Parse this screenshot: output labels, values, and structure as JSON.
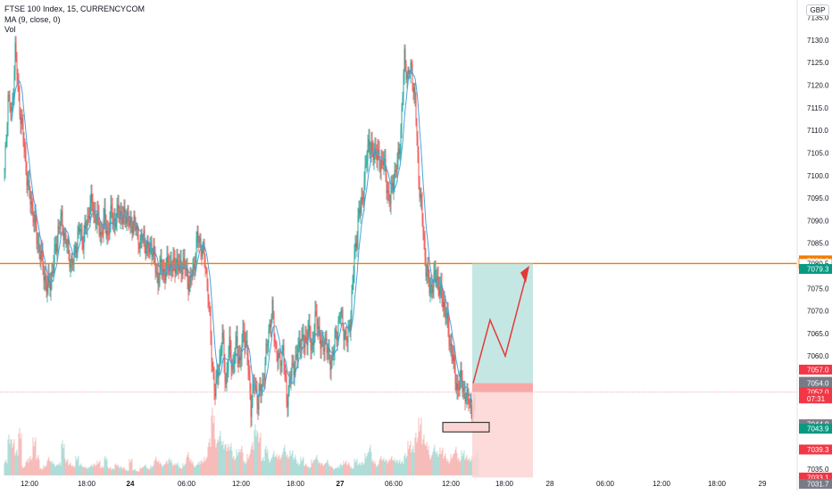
{
  "legend": {
    "symbol": "FTSE 100 Index, 15, CURRENCYCOM",
    "ma": "MA (9, close, 0)",
    "vol": "Vol"
  },
  "currency_label": "GBP",
  "colors": {
    "up": "#26a69a",
    "down": "#ef5350",
    "ma": "#4aa3df",
    "resistance": "#f57c00",
    "profit_zone": "#b2dfdb",
    "loss_zone": "#fbd5d4"
  },
  "chart_data": {
    "type": "candlestick",
    "symbol": "FTSE 100 Index",
    "interval": "15",
    "y_axis": {
      "range": [
        7031,
        7137
      ],
      "ticks": [
        "7135.0",
        "7130.0",
        "7125.0",
        "7120.0",
        "7115.0",
        "7110.0",
        "7105.0",
        "7100.0",
        "7095.0",
        "7090.0",
        "7085.0",
        "7075.0",
        "7070.0",
        "7065.0",
        "7060.0",
        "7035.0"
      ]
    },
    "x_axis": {
      "labels": [
        "12:00",
        "18:00",
        "24",
        "06:00",
        "12:00",
        "18:00",
        "27",
        "06:00",
        "12:00",
        "18:00",
        "28",
        "06:00",
        "12:00",
        "18:00",
        "29"
      ]
    },
    "price_labels": [
      {
        "text": "7081.2",
        "value": 7081.2,
        "color": "#f57c00"
      },
      {
        "text": "7080.5",
        "value": 7080.5,
        "color": "#ffffff"
      },
      {
        "text": "7079.3",
        "value": 7079.3,
        "color": "#089981"
      },
      {
        "text": "7057.0",
        "value": 7057.0,
        "color": "#f23645"
      },
      {
        "text": "7054.3",
        "value": 7054.3,
        "color": "#787b86"
      },
      {
        "text": "7054.0",
        "value": 7054.0,
        "color": "#787b86"
      },
      {
        "text": "7052.0",
        "value": 7052.0,
        "color": "#f23645"
      },
      {
        "text": "07:31",
        "value": 7050.6,
        "color": "#f23645"
      },
      {
        "text": "7044.9",
        "value": 7044.9,
        "color": "#787b86"
      },
      {
        "text": "7043.9",
        "value": 7043.9,
        "color": "#089981"
      },
      {
        "text": "7039.3",
        "value": 7039.3,
        "color": "#f23645"
      },
      {
        "text": "7033.1",
        "value": 7033.1,
        "color": "#f23645"
      },
      {
        "text": "7031.7",
        "value": 7031.7,
        "color": "#787b86"
      }
    ],
    "resistance_level": 7080.5,
    "position": {
      "entry": 7054.0,
      "target": 7080.5,
      "stop": 7033.1
    },
    "price_path": [
      [
        0,
        7100
      ],
      [
        4,
        7118
      ],
      [
        8,
        7113
      ],
      [
        12,
        7128
      ],
      [
        16,
        7117
      ],
      [
        20,
        7110
      ],
      [
        24,
        7102
      ],
      [
        28,
        7095
      ],
      [
        32,
        7092
      ],
      [
        36,
        7086
      ],
      [
        40,
        7083
      ],
      [
        44,
        7078
      ],
      [
        48,
        7075
      ],
      [
        52,
        7077
      ],
      [
        56,
        7082
      ],
      [
        60,
        7088
      ],
      [
        64,
        7090
      ],
      [
        68,
        7086
      ],
      [
        72,
        7083
      ],
      [
        76,
        7080
      ],
      [
        80,
        7085
      ],
      [
        84,
        7088
      ],
      [
        88,
        7086
      ],
      [
        92,
        7089
      ],
      [
        96,
        7094
      ],
      [
        100,
        7092
      ],
      [
        104,
        7090
      ],
      [
        108,
        7087
      ],
      [
        112,
        7090
      ],
      [
        116,
        7087
      ],
      [
        120,
        7092
      ],
      [
        124,
        7089
      ],
      [
        128,
        7093
      ],
      [
        132,
        7090
      ],
      [
        136,
        7092
      ],
      [
        140,
        7089
      ],
      [
        144,
        7090
      ],
      [
        148,
        7088
      ],
      [
        152,
        7085
      ],
      [
        156,
        7087
      ],
      [
        160,
        7083
      ],
      [
        164,
        7085
      ],
      [
        168,
        7081
      ],
      [
        172,
        7077
      ],
      [
        176,
        7080
      ],
      [
        180,
        7078
      ],
      [
        184,
        7081
      ],
      [
        188,
        7079
      ],
      [
        192,
        7081
      ],
      [
        196,
        7079
      ],
      [
        200,
        7081
      ],
      [
        204,
        7078
      ],
      [
        208,
        7076
      ],
      [
        212,
        7080
      ],
      [
        216,
        7086
      ],
      [
        220,
        7085
      ],
      [
        224,
        7082
      ],
      [
        228,
        7075
      ],
      [
        232,
        7060
      ],
      [
        236,
        7052
      ],
      [
        240,
        7058
      ],
      [
        244,
        7064
      ],
      [
        248,
        7054
      ],
      [
        252,
        7062
      ],
      [
        256,
        7057
      ],
      [
        260,
        7063
      ],
      [
        264,
        7058
      ],
      [
        268,
        7066
      ],
      [
        272,
        7060
      ],
      [
        276,
        7049
      ],
      [
        280,
        7054
      ],
      [
        284,
        7050
      ],
      [
        288,
        7053
      ],
      [
        292,
        7058
      ],
      [
        296,
        7066
      ],
      [
        300,
        7070
      ],
      [
        304,
        7062
      ],
      [
        308,
        7058
      ],
      [
        312,
        7062
      ],
      [
        316,
        7050
      ],
      [
        320,
        7055
      ],
      [
        324,
        7058
      ],
      [
        328,
        7060
      ],
      [
        332,
        7064
      ],
      [
        336,
        7062
      ],
      [
        340,
        7066
      ],
      [
        344,
        7061
      ],
      [
        348,
        7068
      ],
      [
        352,
        7066
      ],
      [
        356,
        7061
      ],
      [
        360,
        7064
      ],
      [
        364,
        7058
      ],
      [
        368,
        7061
      ],
      [
        372,
        7065
      ],
      [
        376,
        7070
      ],
      [
        380,
        7066
      ],
      [
        384,
        7063
      ],
      [
        388,
        7070
      ],
      [
        392,
        7082
      ],
      [
        396,
        7090
      ],
      [
        400,
        7094
      ],
      [
        404,
        7100
      ],
      [
        408,
        7108
      ],
      [
        412,
        7104
      ],
      [
        416,
        7106
      ],
      [
        420,
        7102
      ],
      [
        424,
        7104
      ],
      [
        428,
        7098
      ],
      [
        432,
        7094
      ],
      [
        436,
        7100
      ],
      [
        440,
        7102
      ],
      [
        444,
        7110
      ],
      [
        448,
        7126
      ],
      [
        452,
        7122
      ],
      [
        456,
        7124
      ],
      [
        460,
        7116
      ],
      [
        464,
        7100
      ],
      [
        468,
        7090
      ],
      [
        472,
        7080
      ],
      [
        476,
        7075
      ],
      [
        480,
        7076
      ],
      [
        484,
        7078
      ],
      [
        488,
        7074
      ],
      [
        492,
        7072
      ],
      [
        496,
        7067
      ],
      [
        500,
        7062
      ],
      [
        504,
        7057
      ],
      [
        508,
        7052
      ],
      [
        512,
        7056
      ],
      [
        516,
        7050
      ],
      [
        520,
        7052
      ],
      [
        524,
        7046
      ],
      [
        528,
        7054
      ]
    ],
    "volume": [
      [
        0,
        17
      ],
      [
        4,
        44
      ],
      [
        8,
        39
      ],
      [
        12,
        28
      ],
      [
        16,
        51
      ],
      [
        20,
        10
      ],
      [
        24,
        18
      ],
      [
        28,
        21
      ],
      [
        32,
        41
      ],
      [
        36,
        22
      ],
      [
        40,
        8
      ],
      [
        44,
        11
      ],
      [
        48,
        20
      ],
      [
        52,
        16
      ],
      [
        56,
        12
      ],
      [
        60,
        14
      ],
      [
        64,
        38
      ],
      [
        68,
        18
      ],
      [
        72,
        14
      ],
      [
        76,
        11
      ],
      [
        80,
        21
      ],
      [
        84,
        13
      ],
      [
        88,
        10
      ],
      [
        92,
        9
      ],
      [
        96,
        12
      ],
      [
        100,
        13
      ],
      [
        104,
        16
      ],
      [
        108,
        10
      ],
      [
        112,
        21
      ],
      [
        116,
        9
      ],
      [
        120,
        8
      ],
      [
        124,
        13
      ],
      [
        128,
        10
      ],
      [
        132,
        9
      ],
      [
        136,
        6
      ],
      [
        140,
        18
      ],
      [
        144,
        7
      ],
      [
        148,
        5
      ],
      [
        152,
        9
      ],
      [
        156,
        12
      ],
      [
        160,
        8
      ],
      [
        164,
        11
      ],
      [
        168,
        20
      ],
      [
        172,
        16
      ],
      [
        176,
        12
      ],
      [
        180,
        16
      ],
      [
        184,
        19
      ],
      [
        188,
        13
      ],
      [
        192,
        14
      ],
      [
        196,
        9
      ],
      [
        200,
        13
      ],
      [
        204,
        25
      ],
      [
        208,
        17
      ],
      [
        212,
        11
      ],
      [
        216,
        15
      ],
      [
        220,
        17
      ],
      [
        224,
        20
      ],
      [
        228,
        40
      ],
      [
        232,
        73
      ],
      [
        236,
        39
      ],
      [
        240,
        48
      ],
      [
        244,
        37
      ],
      [
        248,
        34
      ],
      [
        252,
        35
      ],
      [
        256,
        21
      ],
      [
        260,
        28
      ],
      [
        264,
        32
      ],
      [
        268,
        16
      ],
      [
        272,
        23
      ],
      [
        276,
        36
      ],
      [
        280,
        55
      ],
      [
        284,
        46
      ],
      [
        288,
        20
      ],
      [
        292,
        32
      ],
      [
        296,
        18
      ],
      [
        300,
        26
      ],
      [
        304,
        23
      ],
      [
        308,
        22
      ],
      [
        312,
        33
      ],
      [
        316,
        23
      ],
      [
        320,
        27
      ],
      [
        324,
        22
      ],
      [
        328,
        14
      ],
      [
        332,
        20
      ],
      [
        336,
        13
      ],
      [
        340,
        10
      ],
      [
        344,
        17
      ],
      [
        348,
        22
      ],
      [
        352,
        15
      ],
      [
        356,
        13
      ],
      [
        360,
        17
      ],
      [
        364,
        11
      ],
      [
        368,
        8
      ],
      [
        372,
        10
      ],
      [
        376,
        13
      ],
      [
        380,
        16
      ],
      [
        384,
        14
      ],
      [
        388,
        9
      ],
      [
        392,
        18
      ],
      [
        396,
        14
      ],
      [
        400,
        15
      ],
      [
        404,
        24
      ],
      [
        408,
        33
      ],
      [
        412,
        17
      ],
      [
        416,
        12
      ],
      [
        420,
        21
      ],
      [
        424,
        19
      ],
      [
        428,
        17
      ],
      [
        432,
        21
      ],
      [
        436,
        18
      ],
      [
        440,
        17
      ],
      [
        444,
        16
      ],
      [
        448,
        24
      ],
      [
        452,
        37
      ],
      [
        456,
        32
      ],
      [
        460,
        46
      ],
      [
        464,
        62
      ],
      [
        468,
        44
      ],
      [
        472,
        36
      ],
      [
        476,
        22
      ],
      [
        480,
        33
      ],
      [
        484,
        26
      ],
      [
        488,
        30
      ],
      [
        492,
        24
      ],
      [
        496,
        17
      ],
      [
        500,
        23
      ],
      [
        504,
        31
      ],
      [
        508,
        19
      ],
      [
        512,
        27
      ],
      [
        516,
        22
      ],
      [
        520,
        19
      ],
      [
        524,
        21
      ],
      [
        528,
        26
      ]
    ]
  }
}
